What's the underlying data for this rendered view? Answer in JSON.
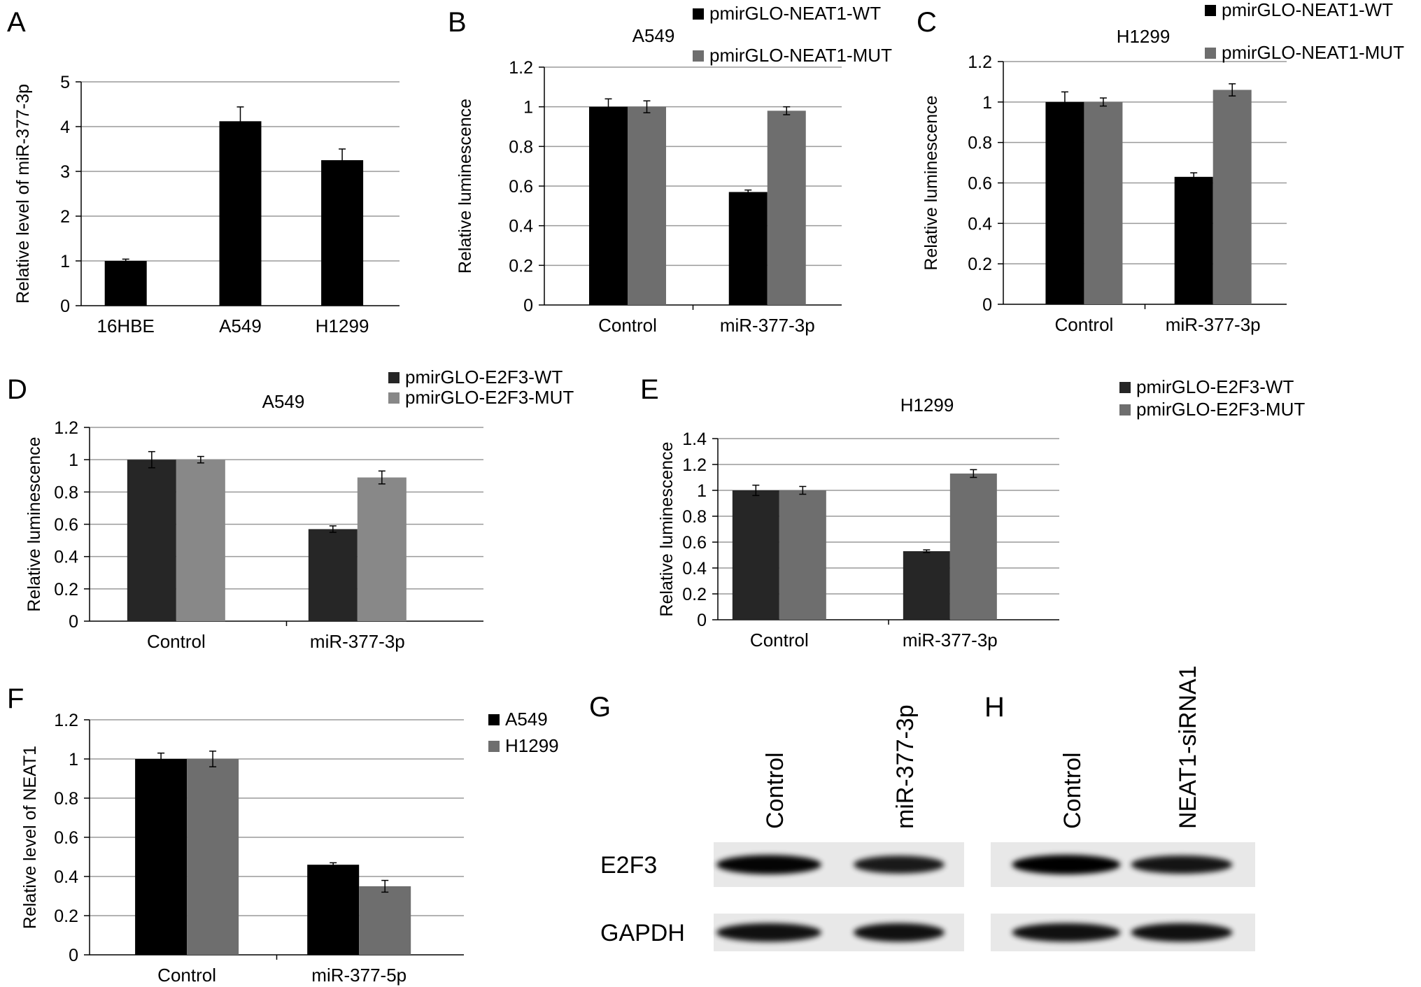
{
  "colors": {
    "black": "#000000",
    "dark": "#262626",
    "gray": "#6e6e6e",
    "lightgray": "#888888",
    "grid": "#9a9a9a"
  },
  "chart_data": [
    {
      "id": "A",
      "panel": "A",
      "type": "bar",
      "subtitle": "",
      "ylabel": "Relative level of miR-377-3p",
      "ylim": [
        0,
        5
      ],
      "yticks": [
        "0",
        "1",
        "2",
        "3",
        "4",
        "5"
      ],
      "categories": [
        "16HBE",
        "A549",
        "H1299"
      ],
      "series": [
        {
          "values": [
            1.0,
            4.12,
            3.25
          ],
          "errors": [
            0.04,
            0.32,
            0.25
          ],
          "color": "#000000"
        }
      ]
    },
    {
      "id": "B",
      "panel": "B",
      "type": "bar",
      "subtitle": "A549",
      "ylabel": "Relative luminescence",
      "ylim": [
        0,
        1.2
      ],
      "yticks": [
        "0",
        "0.2",
        "0.4",
        "0.6",
        "0.8",
        "1",
        "1.2"
      ],
      "categories": [
        "Control",
        "miR-377-3p"
      ],
      "series": [
        {
          "name": "pmirGLO-NEAT1-WT",
          "values": [
            1.0,
            0.57
          ],
          "errors": [
            0.04,
            0.01
          ],
          "color": "#000000"
        },
        {
          "name": "pmirGLO-NEAT1-MUT",
          "values": [
            1.0,
            0.98
          ],
          "errors": [
            0.03,
            0.02
          ],
          "color": "#6e6e6e"
        }
      ]
    },
    {
      "id": "C",
      "panel": "C",
      "type": "bar",
      "subtitle": "H1299",
      "ylabel": "Relative luminescence",
      "ylim": [
        0,
        1.2
      ],
      "yticks": [
        "0",
        "0.2",
        "0.4",
        "0.6",
        "0.8",
        "1",
        "1.2"
      ],
      "categories": [
        "Control",
        "miR-377-3p"
      ],
      "series": [
        {
          "name": "pmirGLO-NEAT1-WT",
          "values": [
            1.0,
            0.63
          ],
          "errors": [
            0.05,
            0.02
          ],
          "color": "#000000"
        },
        {
          "name": "pmirGLO-NEAT1-MUT",
          "values": [
            1.0,
            1.06
          ],
          "errors": [
            0.02,
            0.03
          ],
          "color": "#6e6e6e"
        }
      ]
    },
    {
      "id": "D",
      "panel": "D",
      "type": "bar",
      "subtitle": "A549",
      "ylabel": "Relative luminescence",
      "ylim": [
        0,
        1.2
      ],
      "yticks": [
        "0",
        "0.2",
        "0.4",
        "0.6",
        "0.8",
        "1",
        "1.2"
      ],
      "categories": [
        "Control",
        "miR-377-3p"
      ],
      "series": [
        {
          "name": "pmirGLO-E2F3-WT",
          "values": [
            1.0,
            0.57
          ],
          "errors": [
            0.05,
            0.02
          ],
          "color": "#262626"
        },
        {
          "name": "pmirGLO-E2F3-MUT",
          "values": [
            1.0,
            0.89
          ],
          "errors": [
            0.02,
            0.04
          ],
          "color": "#888888"
        }
      ]
    },
    {
      "id": "E",
      "panel": "E",
      "type": "bar",
      "subtitle": "H1299",
      "ylabel": "Relative luminescence",
      "ylim": [
        0,
        1.4
      ],
      "yticks": [
        "0",
        "0.2",
        "0.4",
        "0.6",
        "0.8",
        "1",
        "1.2",
        "1.4"
      ],
      "categories": [
        "Control",
        "miR-377-3p"
      ],
      "series": [
        {
          "name": "pmirGLO-E2F3-WT",
          "values": [
            1.0,
            0.53
          ],
          "errors": [
            0.04,
            0.01
          ],
          "color": "#262626"
        },
        {
          "name": "pmirGLO-E2F3-MUT",
          "values": [
            1.0,
            1.13
          ],
          "errors": [
            0.03,
            0.03
          ],
          "color": "#6e6e6e"
        }
      ]
    },
    {
      "id": "F",
      "panel": "F",
      "type": "bar",
      "subtitle": "",
      "ylabel": "Relative level of NEAT1",
      "ylim": [
        0,
        1.2
      ],
      "yticks": [
        "0",
        "0.2",
        "0.4",
        "0.6",
        "0.8",
        "1",
        "1.2"
      ],
      "categories": [
        "Control",
        "miR-377-5p"
      ],
      "series": [
        {
          "name": "A549",
          "values": [
            1.0,
            0.46
          ],
          "errors": [
            0.03,
            0.01
          ],
          "color": "#000000"
        },
        {
          "name": "H1299",
          "values": [
            1.0,
            0.35
          ],
          "errors": [
            0.04,
            0.03
          ],
          "color": "#6e6e6e"
        }
      ]
    }
  ],
  "blots": [
    {
      "panel": "G",
      "lanes": [
        "Control",
        "miR-377-3p"
      ],
      "rows": [
        {
          "label": "E2F3",
          "intensities": [
            0.95,
            0.75
          ]
        },
        {
          "label": "GAPDH",
          "intensities": [
            0.85,
            0.85
          ]
        }
      ]
    },
    {
      "panel": "H",
      "lanes": [
        "Control",
        "NEAT1-siRNA1"
      ],
      "rows": [
        {
          "label": "",
          "intensities": [
            1.0,
            0.8
          ]
        },
        {
          "label": "",
          "intensities": [
            0.85,
            0.85
          ]
        }
      ]
    }
  ]
}
